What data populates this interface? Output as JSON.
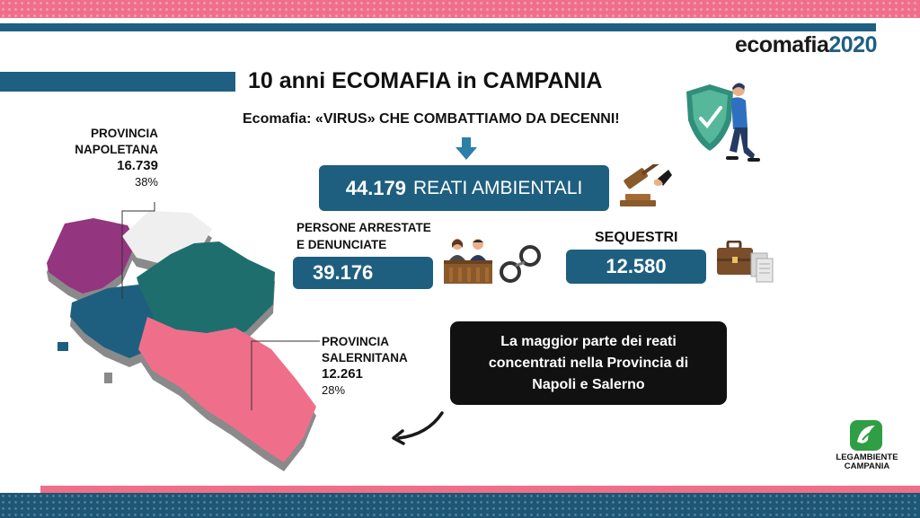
{
  "header": {
    "brand_word": "ecomafia",
    "brand_year": "2020",
    "title": "10 anni ECOMAFIA in CAMPANIA",
    "subtitle": "Ecomafia: «VIRUS» CHE COMBATTIAMO  DA DECENNI!"
  },
  "stats": {
    "reati_value": "44.179",
    "reati_label": "REATI AMBIENTALI",
    "persone_label_1": "PERSONE ARRESTATE",
    "persone_label_2": "E DENUNCIATE",
    "persone_value": "39.176",
    "sequestri_label": "SEQUESTRI",
    "sequestri_value": "12.580"
  },
  "callout": {
    "line1": "La maggior parte dei reati",
    "line2": "concentrati nella Provincia di",
    "line3": "Napoli e Salerno"
  },
  "map": {
    "napoli": {
      "name1": "PROVINCIA",
      "name2": "NAPOLETANA",
      "value": "16.739",
      "pct": "38%"
    },
    "salerno": {
      "name1": "PROVINCIA",
      "name2": "SALERNITANA",
      "value": "12.261",
      "pct": "28%"
    },
    "colors": {
      "caserta": "#94357f",
      "benevento": "#efefef",
      "avellino": "#1f6e6e",
      "napoli": "#1e5f80",
      "salerno": "#ef6f8a",
      "shadow": "#8a8a8a"
    }
  },
  "footer": {
    "org_line1": "LEGAMBIENTE",
    "org_line2": "CAMPANIA"
  },
  "colors": {
    "accent_blue": "#1f5f82",
    "accent_pink": "#ef6f8a"
  }
}
